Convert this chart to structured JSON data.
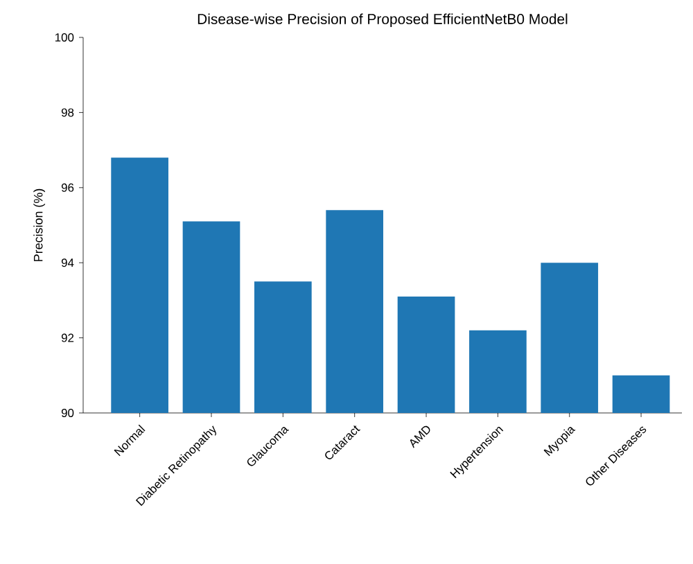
{
  "chart_data": {
    "type": "bar",
    "title": "Disease-wise Precision of Proposed EfficientNetB0 Model",
    "ylabel": "Precision (%)",
    "categories": [
      "Normal",
      "Diabetic Retinopathy",
      "Glaucoma",
      "Cataract",
      "AMD",
      "Hypertension",
      "Myopia",
      "Other Diseases"
    ],
    "values": [
      96.8,
      95.1,
      93.5,
      95.4,
      93.1,
      92.2,
      94.0,
      91.0
    ],
    "color": "#1f77b4",
    "ylim": [
      90,
      100
    ],
    "yticks": [
      90,
      92,
      94,
      96,
      98,
      100
    ],
    "grid": false
  }
}
